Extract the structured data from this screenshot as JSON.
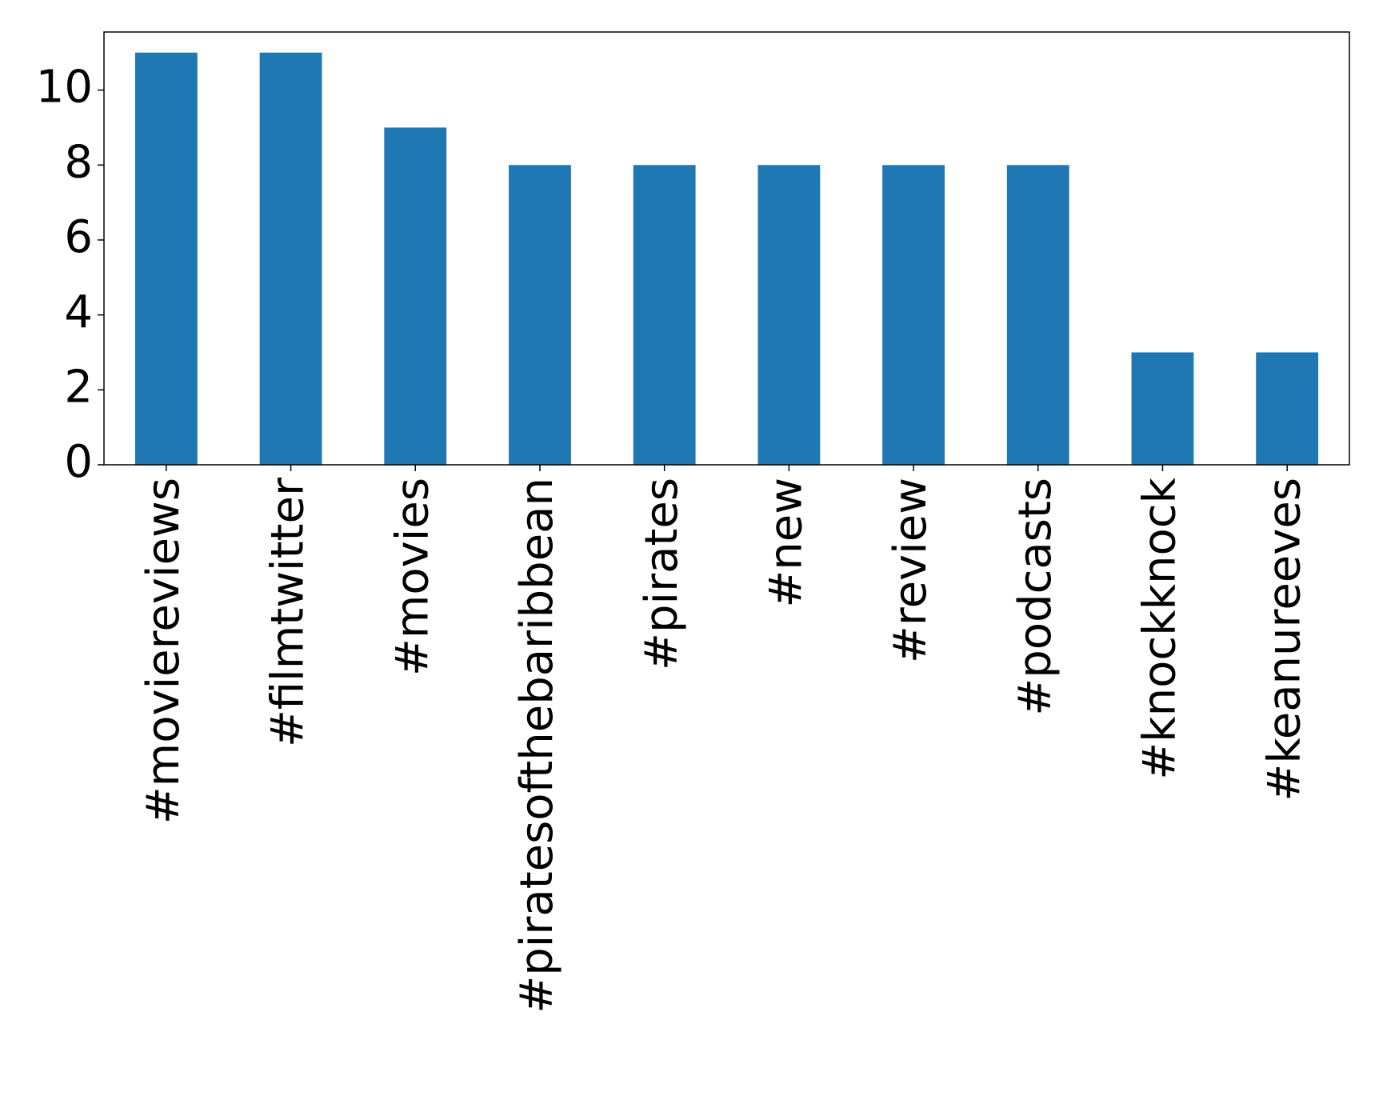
{
  "chart_data": {
    "type": "bar",
    "categories": [
      "#moviereviews",
      "#filmtwitter",
      "#movies",
      "#piratesofthebaribbean",
      "#pirates",
      "#new",
      "#review",
      "#podcasts",
      "#knockknock",
      "#keanureeves"
    ],
    "values": [
      11,
      11,
      9,
      8,
      8,
      8,
      8,
      8,
      3,
      3
    ],
    "color": "#1f77b4",
    "ylim": [
      0,
      11.55
    ],
    "yticks": [
      0,
      2,
      4,
      6,
      8,
      10
    ],
    "grid": false
  }
}
